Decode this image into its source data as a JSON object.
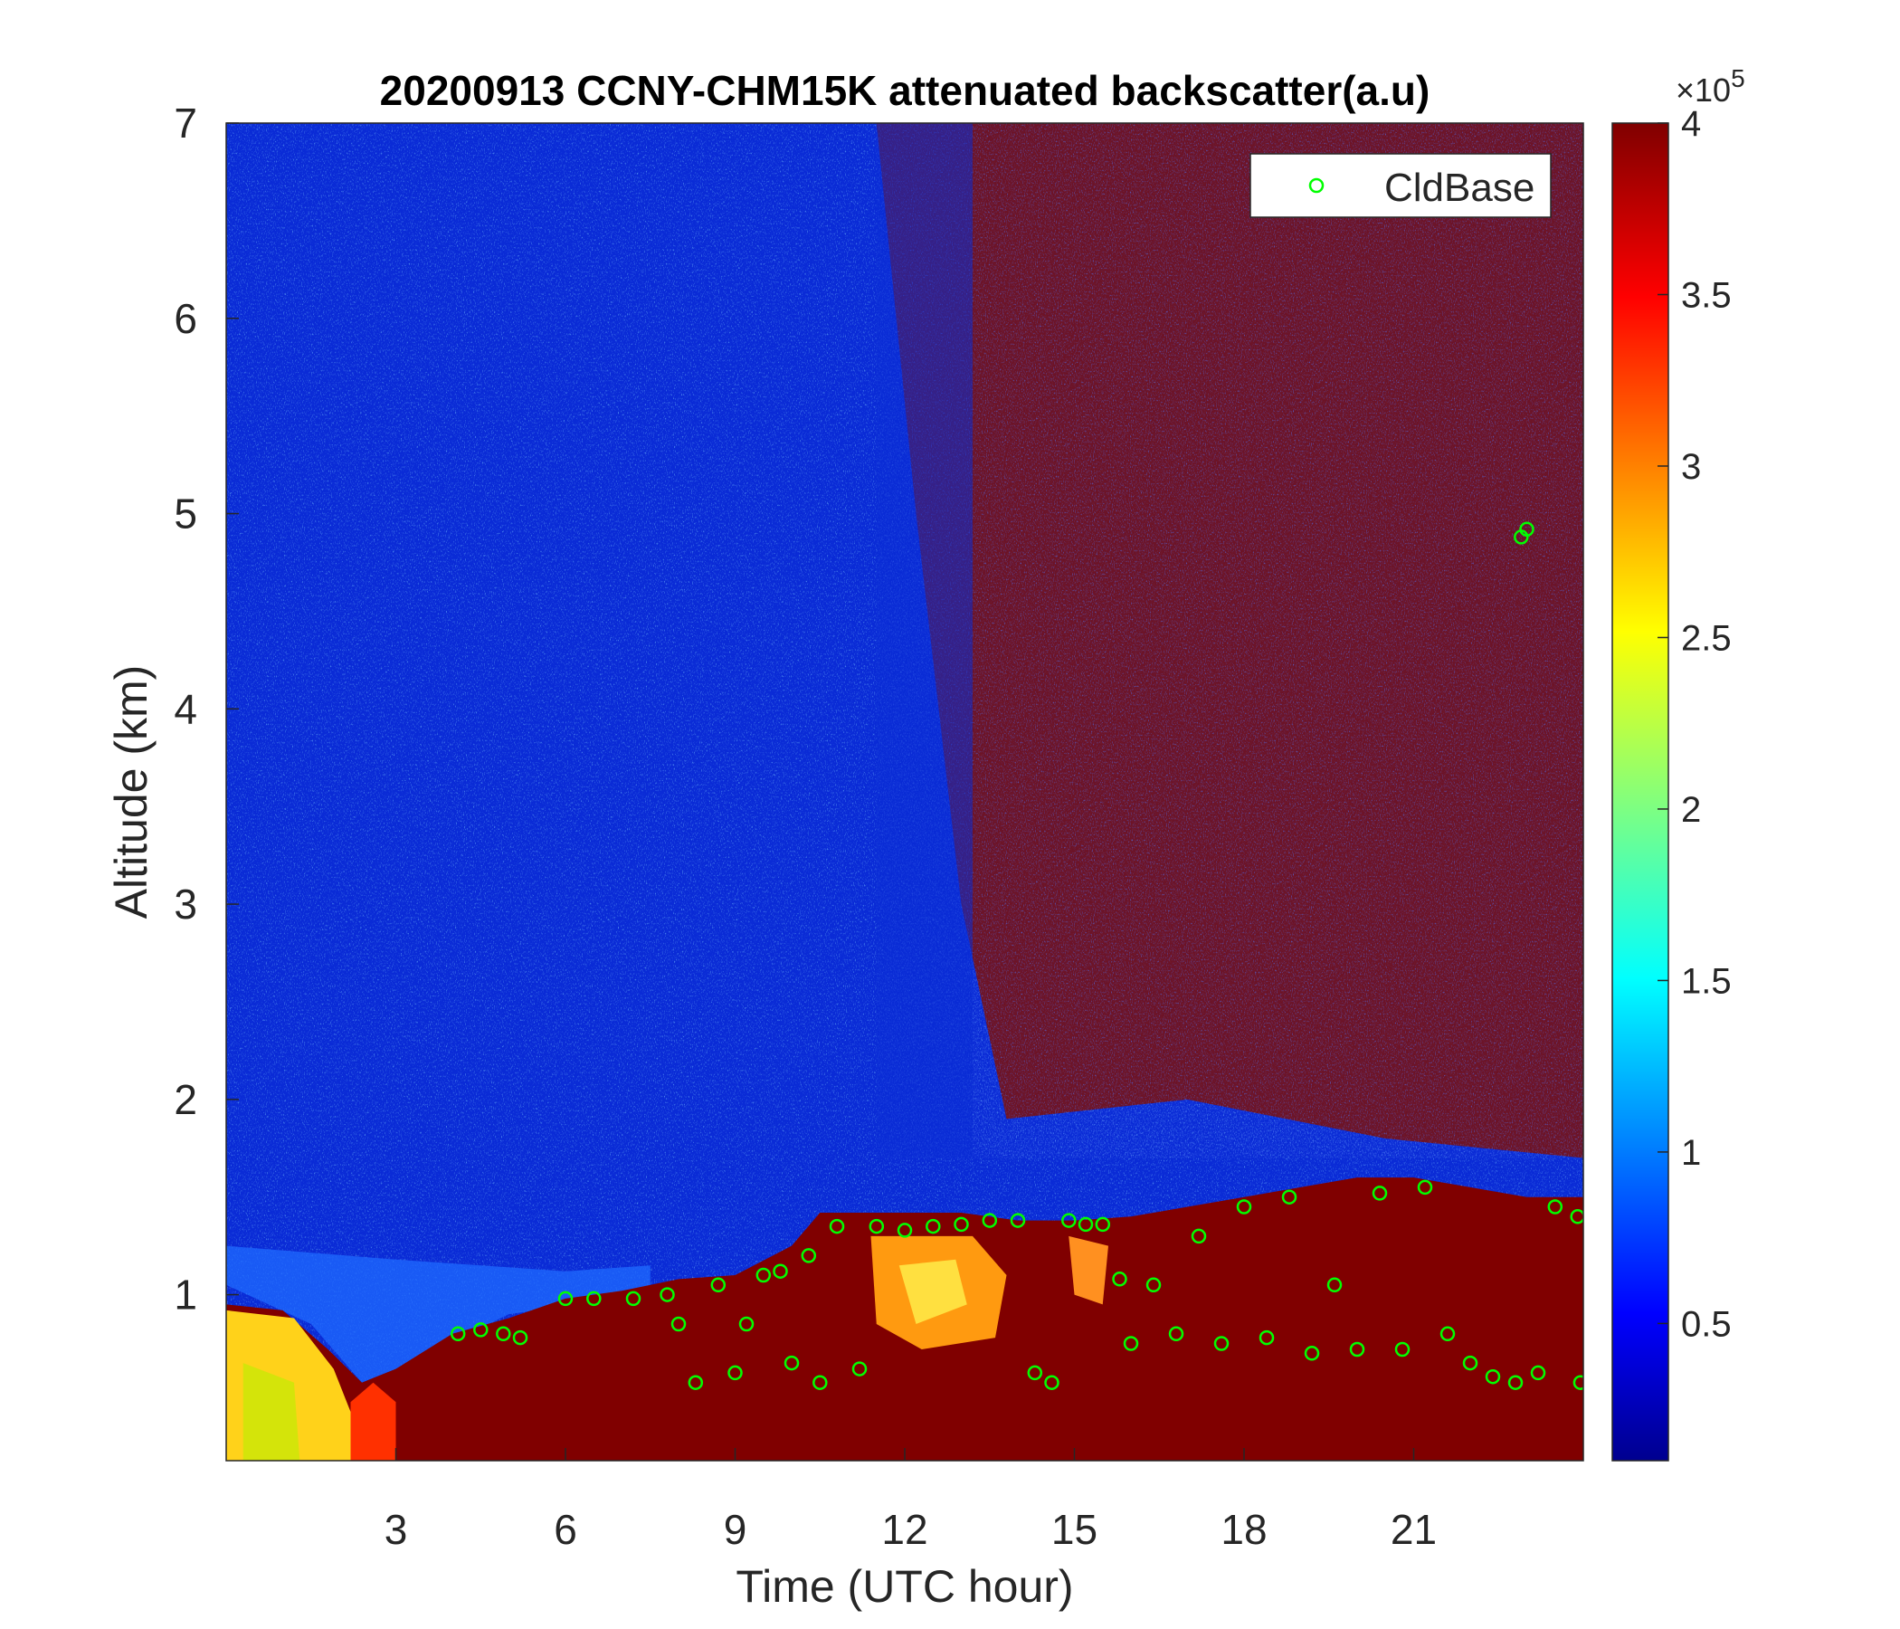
{
  "chart_data": {
    "type": "heatmap",
    "title": "20200913 CCNY-CHM15K attenuated backscatter(a.u)",
    "xlabel": "Time (UTC hour)",
    "ylabel": "Altitude (km)",
    "xlim": [
      0,
      24
    ],
    "ylim": [
      0.15,
      7
    ],
    "x_ticks": [
      3,
      6,
      9,
      12,
      15,
      18,
      21
    ],
    "y_ticks": [
      1,
      2,
      3,
      4,
      5,
      6,
      7
    ],
    "colorbar": {
      "colormap": "jet",
      "range": [
        0.1,
        4
      ],
      "ticks": [
        0.5,
        1,
        1.5,
        2,
        2.5,
        3,
        3.5,
        4
      ],
      "exponent_label": "×10",
      "exponent": "5"
    },
    "legend": {
      "placement": "top-right",
      "entries": [
        "CldBase"
      ]
    },
    "cloud_base_color": "#00ff00",
    "mixed_layer_top_km": [
      [
        0,
        0.95
      ],
      [
        1,
        0.92
      ],
      [
        1.8,
        0.72
      ],
      [
        2.4,
        0.55
      ],
      [
        3,
        0.62
      ],
      [
        4,
        0.8
      ],
      [
        5,
        0.88
      ],
      [
        6,
        0.98
      ],
      [
        7,
        1.02
      ],
      [
        8,
        1.08
      ],
      [
        9,
        1.1
      ],
      [
        10,
        1.25
      ],
      [
        10.5,
        1.42
      ],
      [
        12,
        1.42
      ],
      [
        13,
        1.42
      ],
      [
        14,
        1.38
      ],
      [
        15,
        1.38
      ],
      [
        16,
        1.4
      ],
      [
        17,
        1.45
      ],
      [
        18,
        1.5
      ],
      [
        19,
        1.55
      ],
      [
        20,
        1.6
      ],
      [
        21,
        1.6
      ],
      [
        22,
        1.55
      ],
      [
        23,
        1.5
      ],
      [
        24,
        1.5
      ]
    ],
    "cloud_base_km": [
      [
        4.1,
        0.8
      ],
      [
        4.5,
        0.82
      ],
      [
        4.9,
        0.8
      ],
      [
        5.2,
        0.78
      ],
      [
        6.0,
        0.98
      ],
      [
        6.5,
        0.98
      ],
      [
        7.2,
        0.98
      ],
      [
        7.8,
        1.0
      ],
      [
        8.0,
        0.85
      ],
      [
        8.3,
        0.55
      ],
      [
        8.7,
        1.05
      ],
      [
        9.0,
        0.6
      ],
      [
        9.2,
        0.85
      ],
      [
        9.5,
        1.1
      ],
      [
        9.8,
        1.12
      ],
      [
        10.0,
        0.65
      ],
      [
        10.3,
        1.2
      ],
      [
        10.5,
        0.55
      ],
      [
        10.8,
        1.35
      ],
      [
        11.2,
        0.62
      ],
      [
        11.5,
        1.35
      ],
      [
        12.0,
        1.33
      ],
      [
        12.5,
        1.35
      ],
      [
        13.0,
        1.36
      ],
      [
        13.5,
        1.38
      ],
      [
        14.0,
        1.38
      ],
      [
        14.3,
        0.6
      ],
      [
        14.6,
        0.55
      ],
      [
        14.9,
        1.38
      ],
      [
        15.2,
        1.36
      ],
      [
        15.5,
        1.36
      ],
      [
        15.8,
        1.08
      ],
      [
        16.0,
        0.75
      ],
      [
        16.4,
        1.05
      ],
      [
        16.8,
        0.8
      ],
      [
        17.2,
        1.3
      ],
      [
        17.6,
        0.75
      ],
      [
        18.0,
        1.45
      ],
      [
        18.4,
        0.78
      ],
      [
        18.8,
        1.5
      ],
      [
        19.2,
        0.7
      ],
      [
        19.6,
        1.05
      ],
      [
        20.0,
        0.72
      ],
      [
        20.4,
        1.52
      ],
      [
        20.8,
        0.72
      ],
      [
        21.2,
        1.55
      ],
      [
        21.6,
        0.8
      ],
      [
        22.0,
        0.65
      ],
      [
        22.4,
        0.58
      ],
      [
        22.8,
        0.55
      ],
      [
        22.9,
        4.88
      ],
      [
        23.0,
        4.92
      ],
      [
        23.2,
        0.6
      ],
      [
        23.5,
        1.45
      ],
      [
        23.9,
        1.4
      ],
      [
        23.95,
        0.55
      ]
    ]
  }
}
